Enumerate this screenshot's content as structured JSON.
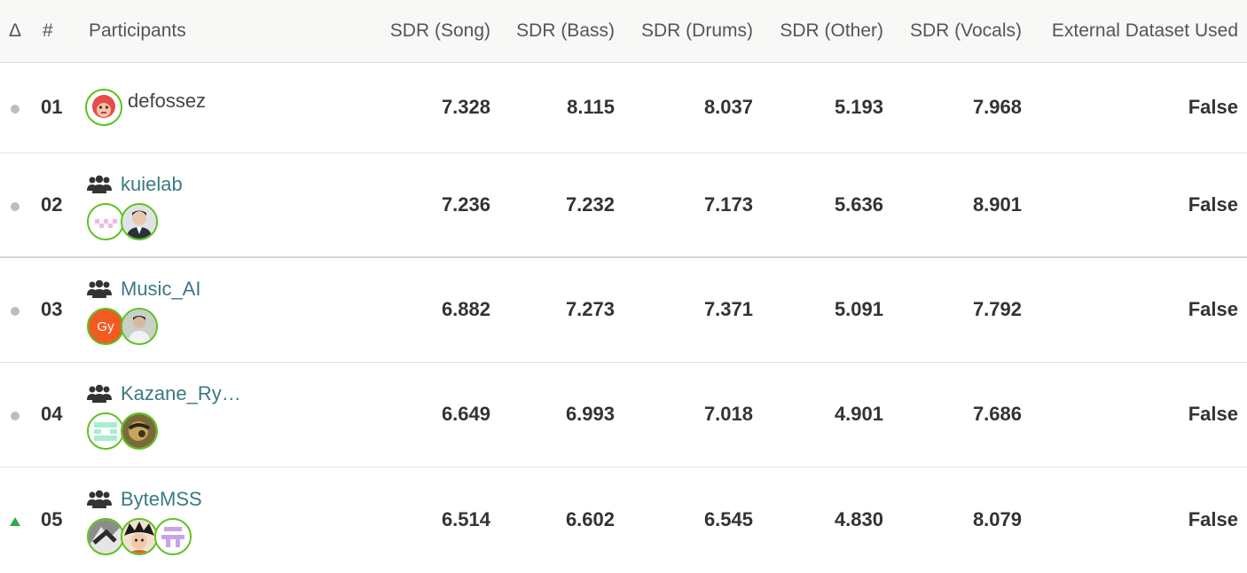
{
  "headers": {
    "delta": "Δ",
    "rank": "#",
    "participants": "Participants",
    "song": "SDR (Song)",
    "bass": "SDR (Bass)",
    "drums": "SDR (Drums)",
    "other": "SDR (Other)",
    "vocals": "SDR (Vocals)",
    "external": "External Dataset Used"
  },
  "rows": [
    {
      "rank": "01",
      "delta": "same",
      "name": "defossez",
      "team": false,
      "song": "7.328",
      "bass": "8.115",
      "drums": "8.037",
      "other": "5.193",
      "vocals": "7.968",
      "external": "False"
    },
    {
      "rank": "02",
      "delta": "same",
      "name": "kuielab",
      "team": true,
      "song": "7.236",
      "bass": "7.232",
      "drums": "7.173",
      "other": "5.636",
      "vocals": "8.901",
      "external": "False"
    },
    {
      "rank": "03",
      "delta": "same",
      "name": "Music_AI",
      "team": true,
      "avatar_text": "Gy",
      "song": "6.882",
      "bass": "7.273",
      "drums": "7.371",
      "other": "5.091",
      "vocals": "7.792",
      "external": "False"
    },
    {
      "rank": "04",
      "delta": "same",
      "name": "Kazane_Ry…",
      "team": true,
      "song": "6.649",
      "bass": "6.993",
      "drums": "7.018",
      "other": "4.901",
      "vocals": "7.686",
      "external": "False"
    },
    {
      "rank": "05",
      "delta": "up",
      "name": "ByteMSS",
      "team": true,
      "song": "6.514",
      "bass": "6.602",
      "drums": "6.545",
      "other": "4.830",
      "vocals": "8.079",
      "external": "False"
    }
  ],
  "colors": {
    "accent_green": "#5cc11e",
    "up_arrow": "#2eab4a",
    "team_link": "#3a7a82"
  }
}
